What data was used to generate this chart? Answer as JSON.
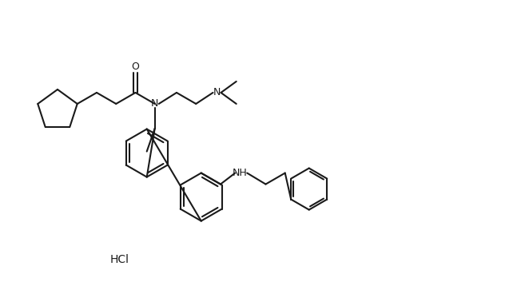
{
  "background_color": "#ffffff",
  "line_color": "#1a1a1a",
  "line_width": 1.5,
  "text_color": "#1a1a1a",
  "hcl_text": "HCl",
  "fig_width": 6.62,
  "fig_height": 3.53,
  "dpi": 100,
  "font_size": 9,
  "atom_labels": {
    "O": "O",
    "N1": "N",
    "N2": "N",
    "NH": "NH"
  }
}
